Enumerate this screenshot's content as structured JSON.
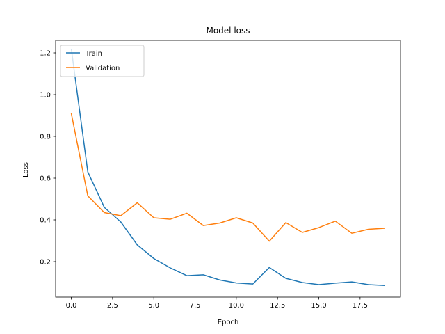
{
  "chart_data": {
    "type": "line",
    "title": "Model loss",
    "xlabel": "Epoch",
    "ylabel": "Loss",
    "x": [
      0,
      1,
      2,
      3,
      4,
      5,
      6,
      7,
      8,
      9,
      10,
      11,
      12,
      13,
      14,
      15,
      16,
      17,
      18,
      19
    ],
    "series": [
      {
        "name": "Train",
        "color": "#1f77b4",
        "values": [
          1.22,
          0.63,
          0.46,
          0.39,
          0.28,
          0.215,
          0.17,
          0.133,
          0.137,
          0.112,
          0.098,
          0.093,
          0.172,
          0.12,
          0.1,
          0.09,
          0.097,
          0.103,
          0.09,
          0.086
        ]
      },
      {
        "name": "Validation",
        "color": "#ff7f0e",
        "values": [
          0.91,
          0.515,
          0.435,
          0.42,
          0.482,
          0.41,
          0.403,
          0.432,
          0.373,
          0.385,
          0.41,
          0.385,
          0.298,
          0.387,
          0.34,
          0.363,
          0.394,
          0.336,
          0.355,
          0.36
        ]
      }
    ],
    "xlim": [
      -0.95,
      19.95
    ],
    "ylim": [
      0.03,
      1.26
    ],
    "xticks": [
      0.0,
      2.5,
      5.0,
      7.5,
      10.0,
      12.5,
      15.0,
      17.5
    ],
    "xtick_labels": [
      "0.0",
      "2.5",
      "5.0",
      "7.5",
      "10.0",
      "12.5",
      "15.0",
      "17.5"
    ],
    "yticks": [
      0.2,
      0.4,
      0.6,
      0.8,
      1.0,
      1.2
    ],
    "ytick_labels": [
      "0.2",
      "0.4",
      "0.6",
      "0.8",
      "1.0",
      "1.2"
    ],
    "grid": false,
    "legend_position": "upper left"
  }
}
